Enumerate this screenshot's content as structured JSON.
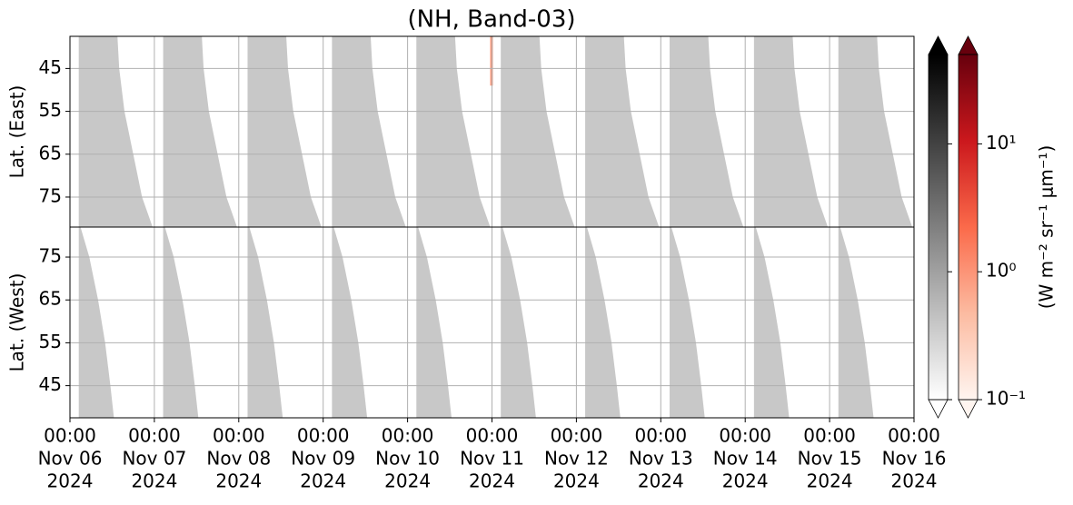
{
  "chart_data": {
    "type": "heatmap",
    "title": "(NH, Band-03)",
    "xlim": [
      "2024-11-06 00:00",
      "2024-11-16 00:00"
    ],
    "xticks": [
      {
        "value": "2024-11-06 00:00",
        "label": [
          "00:00",
          "Nov 06",
          "2024"
        ]
      },
      {
        "value": "2024-11-07 00:00",
        "label": [
          "00:00",
          "Nov 07",
          "2024"
        ]
      },
      {
        "value": "2024-11-08 00:00",
        "label": [
          "00:00",
          "Nov 08",
          "2024"
        ]
      },
      {
        "value": "2024-11-09 00:00",
        "label": [
          "00:00",
          "Nov 09",
          "2024"
        ]
      },
      {
        "value": "2024-11-10 00:00",
        "label": [
          "00:00",
          "Nov 10",
          "2024"
        ]
      },
      {
        "value": "2024-11-11 00:00",
        "label": [
          "00:00",
          "Nov 11",
          "2024"
        ]
      },
      {
        "value": "2024-11-12 00:00",
        "label": [
          "00:00",
          "Nov 12",
          "2024"
        ]
      },
      {
        "value": "2024-11-13 00:00",
        "label": [
          "00:00",
          "Nov 13",
          "2024"
        ]
      },
      {
        "value": "2024-11-14 00:00",
        "label": [
          "00:00",
          "Nov 14",
          "2024"
        ]
      },
      {
        "value": "2024-11-15 00:00",
        "label": [
          "00:00",
          "Nov 15",
          "2024"
        ]
      },
      {
        "value": "2024-11-16 00:00",
        "label": [
          "00:00",
          "Nov 16",
          "2024"
        ]
      }
    ],
    "grid": true,
    "panels": [
      {
        "ylabel": "Lat. (East)",
        "ylim": [
          37.5,
          82
        ],
        "yinvert": true,
        "yticks": [
          45,
          55,
          65,
          75
        ],
        "swath": {
          "color": "#c8c8c8",
          "start_hour": 2.5,
          "edge_lats": [
            37.5,
            45,
            55,
            65,
            75,
            82
          ],
          "edge_hours": [
            13.5,
            14,
            15.5,
            18,
            20.5,
            23.5
          ]
        },
        "highlights": [
          {
            "start": "2024-11-10 23:30",
            "end": "2024-11-11 00:15",
            "lat_from": 37.5,
            "lat_to": 49,
            "color": "#fc9272"
          }
        ]
      },
      {
        "ylabel": "Lat. (West)",
        "ylim": [
          37.5,
          82
        ],
        "yinvert": false,
        "yticks": [
          45,
          55,
          65,
          75
        ],
        "swath": {
          "color": "#c8c8c8",
          "start_hour": 2.5,
          "edge_lats": [
            82,
            75,
            65,
            55,
            45,
            37.5
          ],
          "edge_hours": [
            3,
            5.5,
            8,
            10,
            11.5,
            12.5
          ]
        },
        "highlights": []
      }
    ],
    "colorbar": {
      "label": "(W m⁻² sr⁻¹ μm⁻¹)",
      "log": true,
      "clim": [
        0.1,
        50
      ],
      "ticks": [
        {
          "value": 0.1,
          "label": "10⁻¹"
        },
        {
          "value": 1,
          "label": "10⁰"
        },
        {
          "value": 10,
          "label": "10¹"
        }
      ],
      "colormaps": [
        [
          "#ffffff",
          "#000000"
        ],
        [
          "#fff5f0",
          "#fcbba1",
          "#fb6a4a",
          "#cb181d",
          "#67000d"
        ]
      ]
    }
  }
}
